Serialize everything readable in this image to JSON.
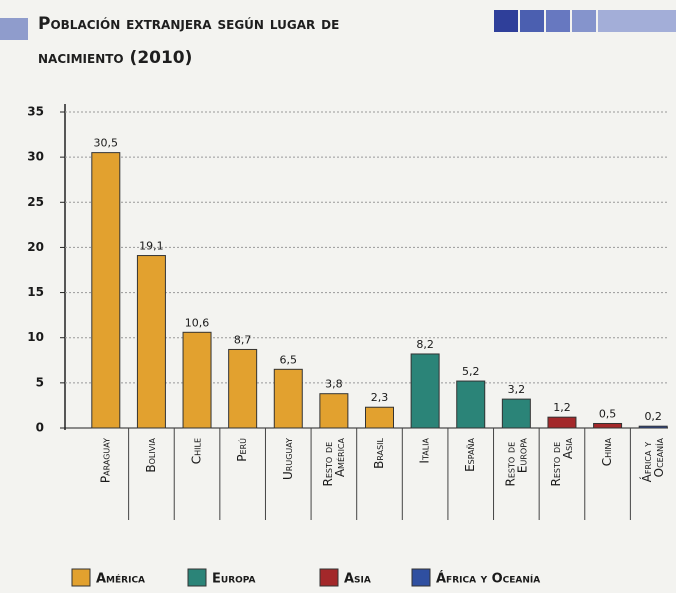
{
  "chart_data": {
    "type": "bar",
    "title": "Población extranjera según lugar de nacimiento (2010)",
    "categories": [
      "Paraguay",
      "Bolivia",
      "Chile",
      "Perú",
      "Uruguay",
      "Resto de América",
      "Brasil",
      "Italia",
      "España",
      "Resto de Europa",
      "Resto de Asia",
      "China",
      "África y Oceanía"
    ],
    "values": [
      30.5,
      19.1,
      10.6,
      8.7,
      6.5,
      3.8,
      2.3,
      8.2,
      5.2,
      3.2,
      1.2,
      0.5,
      0.2
    ],
    "value_labels": [
      "30,5",
      "19,1",
      "10,6",
      "8,7",
      "6,5",
      "3,8",
      "2,3",
      "8,2",
      "5,2",
      "3,2",
      "1,2",
      "0,5",
      "0,2"
    ],
    "colors": [
      "#e2a12f",
      "#e2a12f",
      "#e2a12f",
      "#e2a12f",
      "#e2a12f",
      "#e2a12f",
      "#e2a12f",
      "#2b8478",
      "#2b8478",
      "#2b8478",
      "#a3282a",
      "#a3282a",
      "#2f4fa0"
    ],
    "legend": [
      {
        "name": "América",
        "color": "#e2a12f"
      },
      {
        "name": "Europa",
        "color": "#2b8478"
      },
      {
        "name": "Asia",
        "color": "#a3282a"
      },
      {
        "name": "África y Oceanía",
        "color": "#2f4fa0"
      }
    ],
    "ylim": [
      0,
      35
    ],
    "yticks": [
      0,
      5,
      10,
      15,
      20,
      25,
      30,
      35
    ],
    "grid": true
  }
}
